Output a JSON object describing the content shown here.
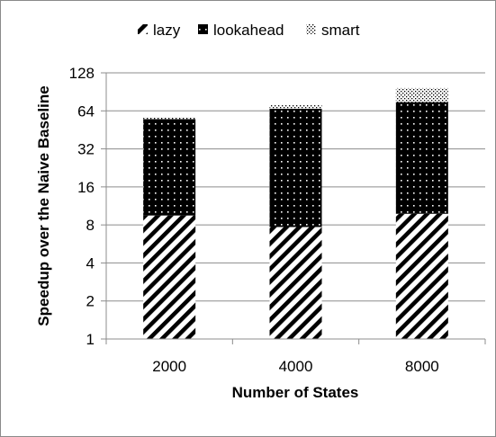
{
  "chart_data": {
    "type": "bar",
    "stacked": true,
    "y_scale": "log2",
    "categories": [
      "2000",
      "4000",
      "8000"
    ],
    "series": [
      {
        "name": "lazy",
        "values": [
          8.5,
          6.7,
          8.8
        ],
        "pattern": "diagonal-stripes"
      },
      {
        "name": "lookahead",
        "values": [
          45.5,
          58.8,
          65.2
        ],
        "pattern": "dots-on-black"
      },
      {
        "name": "smart",
        "values": [
          2.0,
          4.5,
          22.0
        ],
        "pattern": "stipple"
      }
    ],
    "xlabel": "Number of States",
    "ylabel": "Speedup over the Naive Baseline",
    "yticks": [
      1,
      2,
      4,
      8,
      16,
      32,
      64,
      128
    ],
    "ylim": [
      1,
      128
    ],
    "grid": "horizontal",
    "legend_position": "top",
    "colors": {
      "ink": "#000000",
      "grid": "#8c8c8c",
      "background": "#ffffff"
    }
  }
}
